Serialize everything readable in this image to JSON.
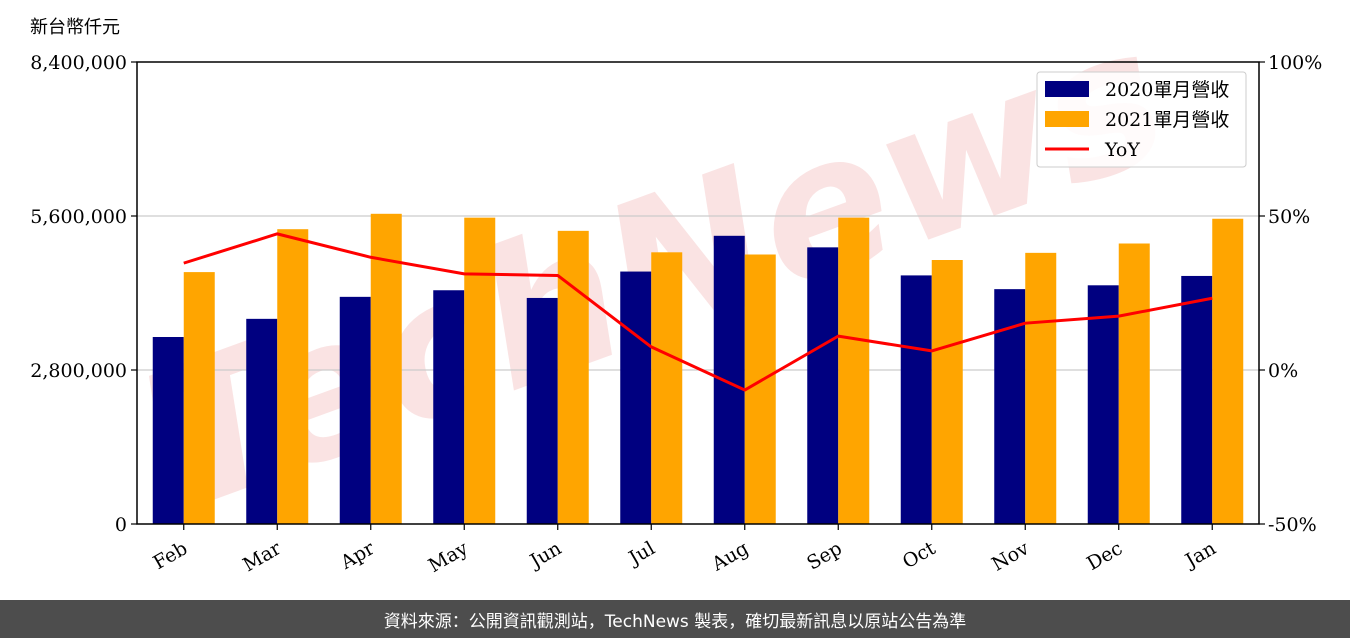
{
  "unit_label": "新台幣仟元",
  "footer": "資料來源：公開資訊觀測站，TechNews 製表，確切最新訊息以原站公告為準",
  "watermark": "TechNews",
  "colors": {
    "bar2020": "#000080",
    "bar2021": "#FFA500",
    "yoy": "#FF0000",
    "grid": "#cccccc",
    "watermark": "#f5c8c8"
  },
  "chart_data": {
    "type": "bar",
    "categories": [
      "Feb",
      "Mar",
      "Apr",
      "May",
      "Jun",
      "Jul",
      "Aug",
      "Sep",
      "Oct",
      "Nov",
      "Dec",
      "Jan"
    ],
    "series": [
      {
        "name": "2020單月營收",
        "type": "bar",
        "axis": "left",
        "values": [
          3400000,
          3730000,
          4130000,
          4250000,
          4110000,
          4590000,
          5240000,
          5030000,
          4520000,
          4270000,
          4340000,
          4510000
        ]
      },
      {
        "name": "2021單月營收",
        "type": "bar",
        "axis": "left",
        "values": [
          4580000,
          5360000,
          5640000,
          5570000,
          5330000,
          4940000,
          4900000,
          5570000,
          4800000,
          4930000,
          5100000,
          5550000
        ]
      },
      {
        "name": "YoY",
        "type": "line",
        "axis": "right",
        "values": [
          34.7,
          44.2,
          36.6,
          31.2,
          30.7,
          7.5,
          -6.5,
          11.0,
          6.2,
          15.2,
          17.5,
          23.3
        ]
      }
    ],
    "y_left": {
      "min": 0,
      "max": 8400000,
      "ticks": [
        "0",
        "2,800,000",
        "5,600,000",
        "8,400,000"
      ],
      "tick_values": [
        0,
        2800000,
        5600000,
        8400000
      ]
    },
    "y_right": {
      "min": -50,
      "max": 100,
      "ticks": [
        "-50%",
        "0%",
        "50%",
        "100%"
      ],
      "tick_values": [
        -50,
        0,
        50,
        100
      ]
    },
    "grid": "horizontal",
    "legend": "top-right"
  }
}
